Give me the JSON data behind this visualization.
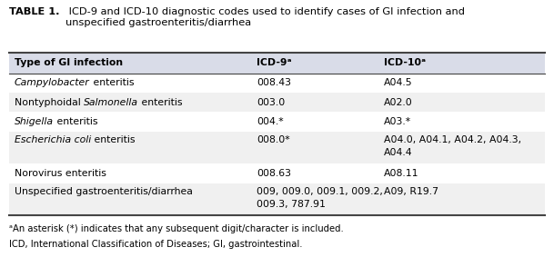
{
  "title_bold": "TABLE 1.",
  "title_rest": " ICD-9 and ICD-10 diagnostic codes used to identify cases of GI infection and\nunspecified gastroenteritis/diarrhea",
  "header": [
    "Type of GI infection",
    "ICD-9ᵃ",
    "ICD-10ᵃ"
  ],
  "header_bg": "#d9dce8",
  "rows": [
    {
      "col1_parts": [
        [
          "Campylobacter",
          true
        ],
        [
          " enteritis",
          false
        ]
      ],
      "col2": "008.43",
      "col3": "A04.5",
      "bg": "#ffffff",
      "multiline": false
    },
    {
      "col1_parts": [
        [
          "Nontyphoidal ",
          false
        ],
        [
          "Salmonella",
          true
        ],
        [
          " enteritis",
          false
        ]
      ],
      "col2": "003.0",
      "col3": "A02.0",
      "bg": "#f0f0f0",
      "multiline": false
    },
    {
      "col1_parts": [
        [
          "Shigella",
          true
        ],
        [
          " enteritis",
          false
        ]
      ],
      "col2": "004.*",
      "col3": "A03.*",
      "bg": "#ffffff",
      "multiline": false
    },
    {
      "col1_parts": [
        [
          "Escherichia coli",
          true
        ],
        [
          " enteritis",
          false
        ]
      ],
      "col2": "008.0*",
      "col3": "A04.0, A04.1, A04.2, A04.3,\nA04.4",
      "bg": "#f0f0f0",
      "multiline": true
    },
    {
      "col1_parts": [
        [
          "Norovirus enteritis",
          false
        ]
      ],
      "col2": "008.63",
      "col3": "A08.11",
      "bg": "#ffffff",
      "multiline": false
    },
    {
      "col1_parts": [
        [
          "Unspecified gastroenteritis/diarrhea",
          false
        ]
      ],
      "col2": "009, 009.0, 009.1, 009.2,\n009.3, 787.91",
      "col3": "A09, R19.7",
      "bg": "#f0f0f0",
      "multiline": true
    }
  ],
  "footnote1": "ᵃAn asterisk (*) indicates that any subsequent digit/character is included.",
  "footnote2": "ICD, International Classification of Diseases; GI, gastrointestinal.",
  "font_size": 7.8,
  "title_font_size": 8.2,
  "footnote_font_size": 7.2
}
